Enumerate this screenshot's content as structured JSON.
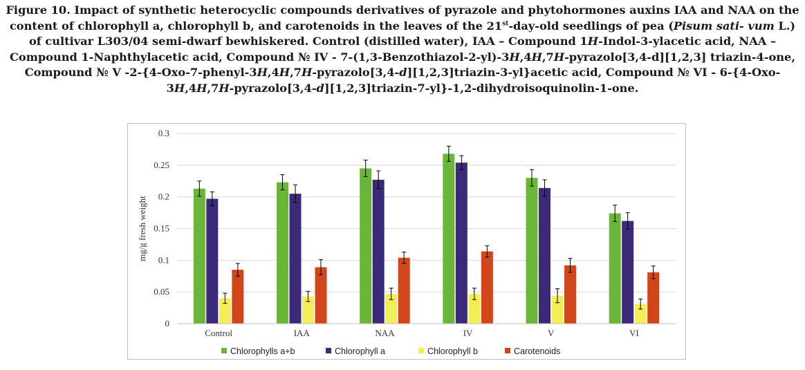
{
  "caption": {
    "p1": "Figure 10. Impact of synthetic heterocyclic compounds derivatives of pyrazole and phytohormones auxins IAA and NAA on the content of chlorophyll a, chlorophyll b, and carotenoids in the leaves of the 21",
    "sup": "st",
    "p2": "-day-old seedlings of pea (",
    "species": "Pisum sati- vum",
    "p3": " L.) of cultivar L303/04 semi-dwarf bewhiskered. Control (distilled water), IAA – Compound 1",
    "h1": "H",
    "p4": "-Indol-3-ylacetic acid, NAA – Compound 1-Naphthylacetic acid, Compound № IV - 7-(1,3-Benzothiazol-2-yl)-3",
    "h2": "H",
    "p5": ",4",
    "h3": "H",
    "p6": ",7",
    "h4": "H",
    "p7": "-pyrazolo[3,4-d][1,2,3] triazin-4-one, Compound № V -2-{4-Oxo-7-phenyl-3",
    "h5": "H",
    "p8": ",4",
    "h6": "H",
    "p9": ",7",
    "h7": "H",
    "p10": "-pyrazolo[3,4-",
    "d1": "d",
    "p11": "][1,2,3]triazin-3-yl}acetic acid, Compound № VI - 6-{4-Oxo-3",
    "h8": "H",
    "p12": ",4",
    "h9": "H",
    "p13": ",7",
    "h10": "H",
    "p14": "-pyrazolo[3,4-",
    "d2": "d",
    "p15": "][1,2,3]triazin-7-yl}-1,2-dihydroisoquinolin-1-one."
  },
  "chart_data": {
    "type": "bar",
    "categories": [
      "Control",
      "IAA",
      "NAA",
      "IV",
      "V",
      "VI"
    ],
    "ylabel": "mg/g fresh weight",
    "xlabel": "",
    "ylim": [
      0,
      0.3
    ],
    "yticks": [
      0,
      0.05,
      0.1,
      0.15,
      0.2,
      0.25,
      0.3
    ],
    "ytick_labels": [
      "0",
      "0.05",
      "0.1",
      "0.15",
      "0.2",
      "0.25",
      "0.3"
    ],
    "grid": true,
    "legend_position": "bottom",
    "series": [
      {
        "name": "Chlorophylls a+b",
        "color": "#6bb53a",
        "pattern": "solid",
        "values": [
          0.213,
          0.223,
          0.245,
          0.268,
          0.23,
          0.174
        ],
        "errors": [
          0.012,
          0.012,
          0.013,
          0.012,
          0.013,
          0.013
        ]
      },
      {
        "name": "Chlorophyll a",
        "color": "#3b2a78",
        "pattern": "solid",
        "values": [
          0.197,
          0.205,
          0.227,
          0.254,
          0.214,
          0.162
        ],
        "errors": [
          0.011,
          0.014,
          0.014,
          0.011,
          0.013,
          0.013
        ]
      },
      {
        "name": "Chlorophyll b",
        "color": "#f2ea2e",
        "pattern": "dotted",
        "values": [
          0.04,
          0.043,
          0.047,
          0.047,
          0.044,
          0.031
        ],
        "errors": [
          0.008,
          0.008,
          0.009,
          0.009,
          0.011,
          0.008
        ]
      },
      {
        "name": "Carotenoids",
        "color": "#d2461c",
        "pattern": "solid",
        "values": [
          0.085,
          0.089,
          0.104,
          0.114,
          0.092,
          0.081
        ],
        "errors": [
          0.01,
          0.012,
          0.009,
          0.009,
          0.011,
          0.01
        ]
      }
    ]
  }
}
